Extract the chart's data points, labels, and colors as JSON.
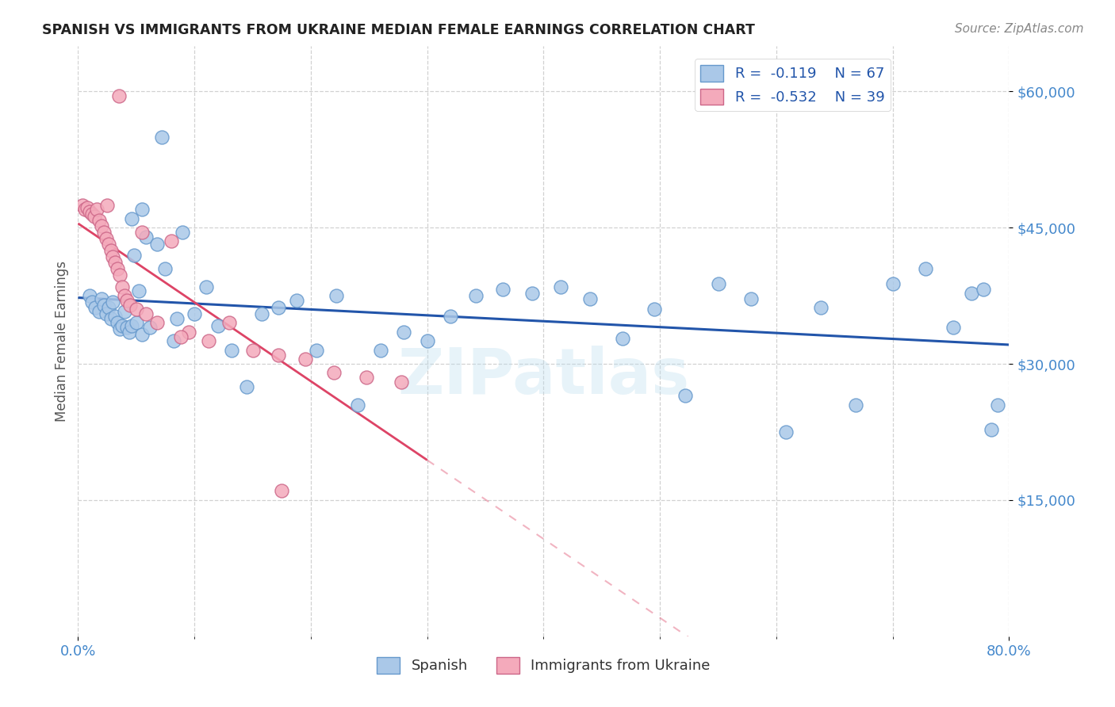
{
  "title": "SPANISH VS IMMIGRANTS FROM UKRAINE MEDIAN FEMALE EARNINGS CORRELATION CHART",
  "source": "Source: ZipAtlas.com",
  "ylabel": "Median Female Earnings",
  "watermark": "ZIPatlas",
  "legend_r1": "R =  -0.119",
  "legend_n1": "N = 67",
  "legend_r2": "R =  -0.532",
  "legend_n2": "N = 39",
  "legend_label1": "Spanish",
  "legend_label2": "Immigrants from Ukraine",
  "blue_scatter_color": "#aac8e8",
  "blue_edge_color": "#6699cc",
  "blue_line_color": "#2255aa",
  "pink_scatter_color": "#f4aabb",
  "pink_edge_color": "#cc6688",
  "pink_line_color": "#dd4466",
  "title_color": "#222222",
  "axis_tick_color": "#4488cc",
  "xmin": 0.0,
  "xmax": 0.8,
  "ymin": 0,
  "ymax": 65000,
  "yticks": [
    15000,
    30000,
    45000,
    60000
  ],
  "ytick_labels": [
    "$15,000",
    "$30,000",
    "$45,000",
    "$60,000"
  ],
  "spanish_x": [
    0.01,
    0.012,
    0.015,
    0.018,
    0.02,
    0.022,
    0.024,
    0.026,
    0.028,
    0.03,
    0.032,
    0.034,
    0.036,
    0.038,
    0.04,
    0.042,
    0.044,
    0.046,
    0.048,
    0.05,
    0.052,
    0.055,
    0.058,
    0.062,
    0.068,
    0.075,
    0.082,
    0.09,
    0.1,
    0.11,
    0.12,
    0.132,
    0.145,
    0.158,
    0.172,
    0.188,
    0.205,
    0.222,
    0.24,
    0.26,
    0.28,
    0.3,
    0.32,
    0.342,
    0.365,
    0.39,
    0.415,
    0.44,
    0.468,
    0.495,
    0.522,
    0.55,
    0.578,
    0.608,
    0.638,
    0.668,
    0.7,
    0.728,
    0.752,
    0.768,
    0.778,
    0.785,
    0.79,
    0.046,
    0.055,
    0.072,
    0.085
  ],
  "spanish_y": [
    37500,
    36800,
    36200,
    35800,
    37200,
    36500,
    35500,
    36200,
    35000,
    36800,
    35200,
    34500,
    33800,
    34200,
    35800,
    34000,
    33500,
    34200,
    42000,
    34500,
    38000,
    33200,
    44000,
    34000,
    43200,
    40500,
    32500,
    44500,
    35500,
    38500,
    34200,
    31500,
    27500,
    35500,
    36200,
    37000,
    31500,
    37500,
    25500,
    31500,
    33500,
    32500,
    35200,
    37500,
    38200,
    37800,
    38500,
    37200,
    32800,
    36000,
    26500,
    38800,
    37200,
    22500,
    36200,
    25500,
    38800,
    40500,
    34000,
    37800,
    38200,
    22800,
    25500,
    46000,
    47000,
    55000,
    35000
  ],
  "ukraine_x": [
    0.004,
    0.006,
    0.008,
    0.01,
    0.012,
    0.014,
    0.016,
    0.018,
    0.02,
    0.022,
    0.024,
    0.026,
    0.028,
    0.03,
    0.032,
    0.034,
    0.036,
    0.038,
    0.04,
    0.042,
    0.045,
    0.05,
    0.058,
    0.068,
    0.08,
    0.095,
    0.112,
    0.13,
    0.15,
    0.172,
    0.195,
    0.22,
    0.248,
    0.278,
    0.035,
    0.055,
    0.025,
    0.088,
    0.175
  ],
  "ukraine_y": [
    47500,
    47000,
    47200,
    46800,
    46500,
    46200,
    47000,
    45800,
    45200,
    44500,
    43800,
    43200,
    42500,
    41800,
    41200,
    40500,
    39800,
    38500,
    37500,
    37000,
    36500,
    36000,
    35500,
    34500,
    43500,
    33500,
    32500,
    34500,
    31500,
    31000,
    30500,
    29000,
    28500,
    28000,
    59500,
    44500,
    47500,
    33000,
    16000
  ]
}
